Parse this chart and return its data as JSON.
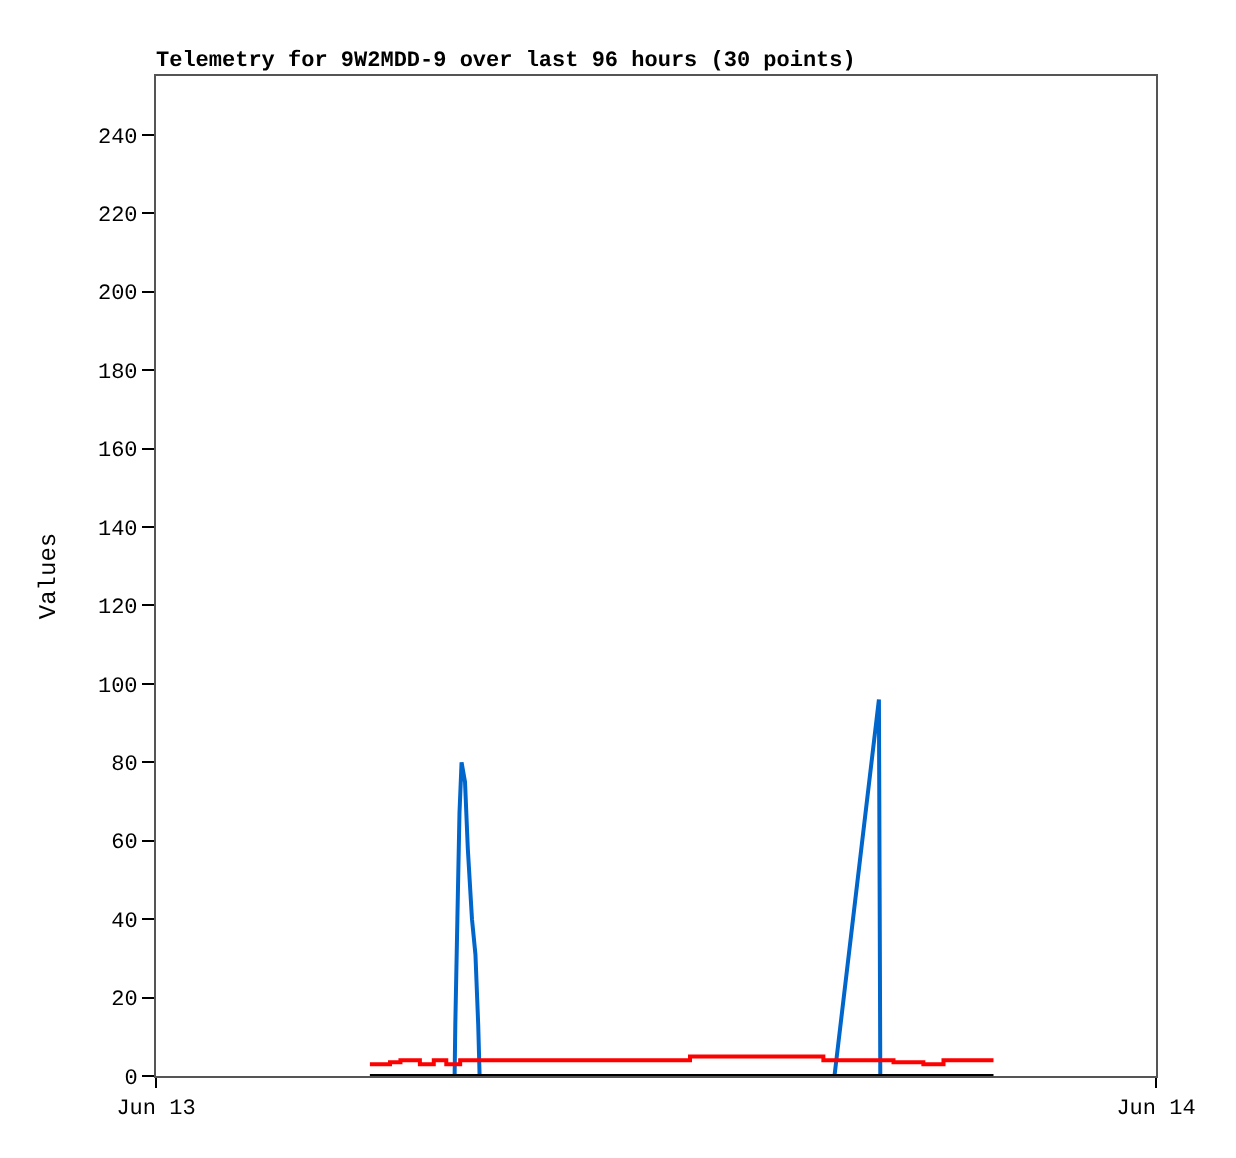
{
  "chart_data": {
    "type": "line",
    "title": "Telemetry for 9W2MDD-9 over last 96 hours (30 points)",
    "ylabel": "Values",
    "xlim": [
      "--06-13",
      "--06-14"
    ],
    "xticks": [
      {
        "value": "--06-13",
        "label": "Jun 13"
      },
      {
        "value": "--06-14",
        "label": "Jun 14"
      }
    ],
    "ylim": [
      0,
      255
    ],
    "yticks": [
      0,
      20,
      40,
      60,
      80,
      100,
      120,
      140,
      160,
      180,
      200,
      220,
      240
    ],
    "series": [
      {
        "color": "#0066cc",
        "x": [
          "--06-13T07:10",
          "--06-13T07:11",
          "--06-13T07:14",
          "--06-13T07:17",
          "--06-13T07:20",
          "--06-13T07:25",
          "--06-13T07:29",
          "--06-13T07:35",
          "--06-13T07:40",
          "--06-13T07:44",
          "--06-13T07:46",
          "--06-13T12:00",
          "--06-13T16:17",
          "--06-13T17:21",
          "--06-13T17:22",
          "--06-13T17:23"
        ],
        "values": [
          0,
          13,
          40,
          67,
          80,
          75,
          58,
          40,
          31,
          13,
          0,
          null,
          0,
          96,
          48,
          0
        ]
      },
      {
        "type": "step",
        "color": "#ff0000",
        "x": [
          "--06-13T05:08",
          "--06-13T05:37",
          "--06-13T05:52",
          "--06-13T06:20",
          "--06-13T06:40",
          "--06-13T06:58",
          "--06-13T07:18",
          "--06-13T12:49",
          "--06-13T16:01",
          "--06-13T17:42",
          "--06-13T18:25",
          "--06-13T18:54",
          "--06-13T20:06"
        ],
        "values": [
          3,
          3.5,
          4,
          3,
          4,
          3,
          4,
          5,
          4,
          3.5,
          3,
          4,
          4
        ]
      },
      {
        "color": "#000000",
        "x": [
          "--06-13T05:08",
          "--06-13T20:06"
        ],
        "values": [
          0,
          0
        ]
      }
    ]
  }
}
